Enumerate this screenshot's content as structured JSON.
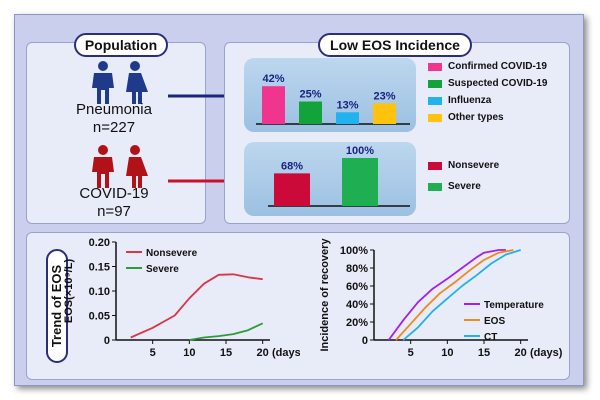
{
  "population": {
    "title": "Population",
    "groups": [
      {
        "name": "Pneumonia",
        "n": "n=227",
        "color": "#1f3a8a"
      },
      {
        "name": "COVID-19",
        "n": "n=97",
        "color": "#b01217"
      }
    ]
  },
  "incidence": {
    "title": "Low EOS Incidence",
    "pneumonia_bars": {
      "series": [
        {
          "name": "Confirmed COVID-19",
          "value": 42,
          "label": "42%",
          "color": "#f0358f"
        },
        {
          "name": "Suspected COVID-19",
          "value": 25,
          "label": "25%",
          "color": "#14a23a"
        },
        {
          "name": "Influenza",
          "value": 13,
          "label": "13%",
          "color": "#21b2ef"
        },
        {
          "name": "Other types",
          "value": 23,
          "label": "23%",
          "color": "#ffc20e"
        }
      ]
    },
    "covid_bars": {
      "series": [
        {
          "name": "Nonsevere",
          "value": 68,
          "label": "68%",
          "color": "#cc0a3a"
        },
        {
          "name": "Severe",
          "value": 100,
          "label": "100%",
          "color": "#1fae52"
        }
      ]
    }
  },
  "trend": {
    "title": "Trend of EOS"
  },
  "chart_data": [
    {
      "type": "line",
      "ylabel": "EOS(×10⁹/L)",
      "xlabel": "(days)",
      "xlim": [
        0,
        21
      ],
      "ylim": [
        0,
        0.2
      ],
      "xticks": [
        "5",
        "10",
        "15",
        "20"
      ],
      "yticks": [
        "0",
        "0.05",
        "0.10",
        "0.15",
        "0.20"
      ],
      "series": [
        {
          "name": "Nonsevere",
          "color": "#d9364a",
          "x": [
            2,
            5,
            8,
            10,
            12,
            14,
            16,
            18,
            20
          ],
          "y": [
            0.005,
            0.025,
            0.05,
            0.085,
            0.115,
            0.133,
            0.134,
            0.128,
            0.124
          ]
        },
        {
          "name": "Severe",
          "color": "#2e9a3a",
          "x": [
            10,
            12,
            14,
            16,
            18,
            20
          ],
          "y": [
            0.0,
            0.005,
            0.008,
            0.012,
            0.02,
            0.034
          ]
        }
      ]
    },
    {
      "type": "line",
      "ylabel": "Incidence of recovery",
      "xlabel": "(days)",
      "xlim": [
        0,
        21
      ],
      "ylim": [
        0,
        100
      ],
      "xticks": [
        "5",
        "10",
        "15",
        "20"
      ],
      "yticks": [
        "0",
        "20%",
        "40%",
        "60%",
        "80%",
        "100%"
      ],
      "series": [
        {
          "name": "Temperature",
          "color": "#a020f0",
          "x": [
            2,
            4,
            6,
            8,
            10,
            12,
            14,
            15,
            17,
            18
          ],
          "y": [
            0,
            22,
            42,
            57,
            68,
            80,
            92,
            97,
            100,
            100
          ]
        },
        {
          "name": "EOS",
          "color": "#ef8a1a",
          "x": [
            3,
            5,
            7,
            9,
            11,
            13,
            15,
            17,
            19
          ],
          "y": [
            0,
            18,
            36,
            52,
            64,
            77,
            89,
            97,
            100
          ]
        },
        {
          "name": "CT",
          "color": "#24b0e8",
          "x": [
            4,
            6,
            8,
            10,
            12,
            14,
            16,
            18,
            20
          ],
          "y": [
            0,
            14,
            32,
            46,
            60,
            72,
            85,
            95,
            100
          ]
        }
      ]
    }
  ]
}
